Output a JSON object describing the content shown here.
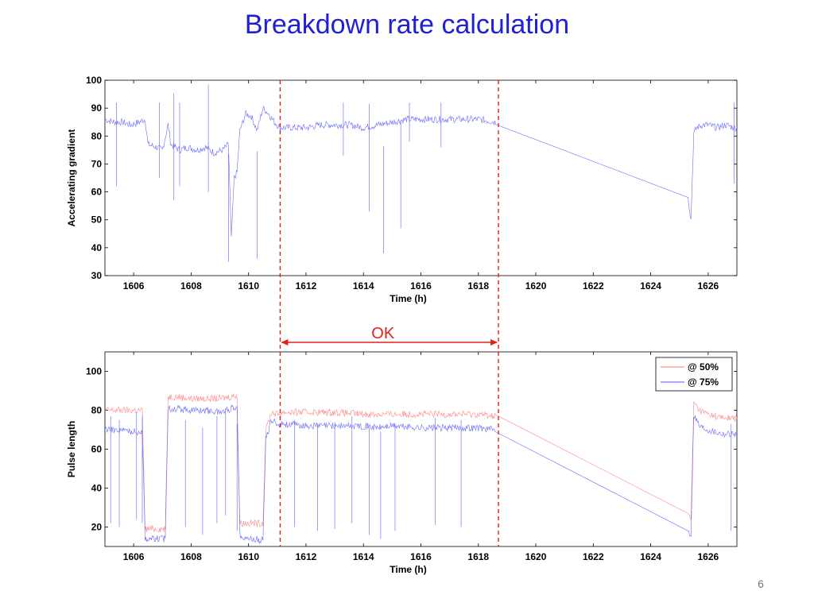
{
  "slide": {
    "title": "Breakdown rate calculation",
    "page_number": "6",
    "ok_label": "OK",
    "colors": {
      "title": "#1f1fd6",
      "marker": "#e0201b",
      "series_blue": "#5a5aff",
      "series_red": "#ff7a7a"
    }
  },
  "chart_data": [
    {
      "type": "line",
      "title": "",
      "xlabel": "Time (h)",
      "ylabel": "Accelerating gradient",
      "xlim": [
        1605,
        1627
      ],
      "ylim": [
        30,
        100
      ],
      "xticks": [
        1606,
        1608,
        1610,
        1612,
        1614,
        1616,
        1618,
        1620,
        1622,
        1624,
        1626
      ],
      "yticks": [
        30,
        40,
        50,
        60,
        70,
        80,
        90,
        100
      ],
      "series": [
        {
          "name": "",
          "color": "#5a5aff",
          "x": [
            1605.0,
            1605.3,
            1605.6,
            1605.9,
            1606.2,
            1606.4,
            1606.5,
            1606.8,
            1607.0,
            1607.2,
            1607.3,
            1607.6,
            1607.9,
            1608.2,
            1608.5,
            1608.8,
            1609.1,
            1609.3,
            1609.4,
            1609.5,
            1609.6,
            1609.7,
            1609.8,
            1609.9,
            1610.1,
            1610.3,
            1610.5,
            1610.7,
            1610.9,
            1611.1,
            1611.5,
            1612.0,
            1612.5,
            1613.0,
            1613.5,
            1614.0,
            1614.5,
            1615.0,
            1615.5,
            1616.0,
            1616.5,
            1617.0,
            1617.5,
            1618.0,
            1618.6,
            1625.3,
            1625.4,
            1625.5,
            1625.6,
            1625.8,
            1626.0,
            1626.3,
            1626.6,
            1626.9,
            1627.0
          ],
          "y": [
            86,
            85,
            85,
            84,
            85,
            86,
            77,
            76,
            75,
            84,
            77,
            75,
            76,
            75,
            76,
            74,
            75,
            77,
            43,
            65,
            67,
            82,
            85,
            88,
            87,
            82,
            90,
            88,
            85,
            83,
            83,
            83,
            84,
            84,
            84,
            83,
            84,
            85,
            86,
            86,
            86,
            86,
            86,
            86,
            85,
            58,
            50,
            81,
            83,
            84,
            84,
            83,
            84,
            83,
            83
          ]
        }
      ],
      "dips": [
        {
          "x": 1605.4,
          "y": 62
        },
        {
          "x": 1606.9,
          "y": 65
        },
        {
          "x": 1607.4,
          "y": 57
        },
        {
          "x": 1607.6,
          "y": 62
        },
        {
          "x": 1608.6,
          "y": 60
        },
        {
          "x": 1609.3,
          "y": 35
        },
        {
          "x": 1610.3,
          "y": 36
        },
        {
          "x": 1613.3,
          "y": 73
        },
        {
          "x": 1614.2,
          "y": 53
        },
        {
          "x": 1614.7,
          "y": 38
        },
        {
          "x": 1615.3,
          "y": 47
        },
        {
          "x": 1615.6,
          "y": 78
        },
        {
          "x": 1616.7,
          "y": 76
        },
        {
          "x": 1626.9,
          "y": 63
        }
      ]
    },
    {
      "type": "line",
      "title": "",
      "xlabel": "Time (h)",
      "ylabel": "Pulse length",
      "xlim": [
        1605,
        1627
      ],
      "ylim": [
        10,
        110
      ],
      "xticks": [
        1606,
        1608,
        1610,
        1612,
        1614,
        1616,
        1618,
        1620,
        1622,
        1624,
        1626
      ],
      "yticks": [
        20,
        40,
        60,
        80,
        100
      ],
      "legend": {
        "position": "top-right",
        "entries": [
          "@ 50%",
          "@ 75%"
        ]
      },
      "series": [
        {
          "name": "@ 50%",
          "color": "#ff7a7a",
          "x": [
            1605.0,
            1605.5,
            1606.0,
            1606.3,
            1606.4,
            1607.0,
            1607.1,
            1607.2,
            1607.5,
            1608.0,
            1608.5,
            1609.0,
            1609.4,
            1609.6,
            1609.7,
            1610.0,
            1610.5,
            1610.6,
            1610.8,
            1611.0,
            1611.2,
            1612.0,
            1613.0,
            1614.0,
            1614.5,
            1615.0,
            1616.0,
            1617.0,
            1618.0,
            1618.6,
            1625.3,
            1625.4,
            1625.5,
            1625.7,
            1626.0,
            1626.5,
            1627.0
          ],
          "y": [
            80,
            80,
            80,
            80,
            19,
            19,
            19,
            87,
            87,
            86,
            86,
            86,
            87,
            88,
            22,
            22,
            22,
            70,
            79,
            78,
            79,
            79,
            79,
            78,
            78,
            78,
            78,
            78,
            78,
            77,
            27,
            24,
            84,
            80,
            78,
            76,
            76
          ]
        },
        {
          "name": "@ 75%",
          "color": "#5a5aff",
          "x": [
            1605.0,
            1605.5,
            1606.0,
            1606.3,
            1606.4,
            1607.0,
            1607.1,
            1607.2,
            1607.5,
            1608.0,
            1608.5,
            1609.0,
            1609.4,
            1609.6,
            1609.7,
            1610.0,
            1610.5,
            1610.6,
            1610.8,
            1611.0,
            1611.2,
            1612.0,
            1613.0,
            1614.0,
            1614.5,
            1615.0,
            1616.0,
            1617.0,
            1618.0,
            1618.6,
            1625.3,
            1625.4,
            1625.5,
            1625.7,
            1626.0,
            1626.5,
            1627.0
          ],
          "y": [
            70,
            70,
            69,
            69,
            14,
            14,
            14,
            81,
            81,
            80,
            80,
            79,
            81,
            82,
            16,
            14,
            13,
            65,
            75,
            73,
            73,
            72,
            72,
            72,
            71,
            72,
            71,
            71,
            71,
            70,
            18,
            16,
            78,
            72,
            70,
            68,
            68
          ]
        }
      ],
      "dips": [
        {
          "x": 1605.2,
          "y": 22
        },
        {
          "x": 1605.5,
          "y": 20
        },
        {
          "x": 1606.1,
          "y": 24
        },
        {
          "x": 1606.3,
          "y": 22
        },
        {
          "x": 1607.8,
          "y": 20
        },
        {
          "x": 1608.4,
          "y": 16
        },
        {
          "x": 1608.9,
          "y": 22
        },
        {
          "x": 1609.2,
          "y": 26
        },
        {
          "x": 1609.6,
          "y": 18
        },
        {
          "x": 1611.6,
          "y": 20
        },
        {
          "x": 1612.4,
          "y": 18
        },
        {
          "x": 1613.0,
          "y": 19
        },
        {
          "x": 1613.6,
          "y": 22
        },
        {
          "x": 1614.2,
          "y": 16
        },
        {
          "x": 1614.6,
          "y": 14
        },
        {
          "x": 1615.1,
          "y": 18
        },
        {
          "x": 1616.5,
          "y": 21
        },
        {
          "x": 1617.4,
          "y": 20
        },
        {
          "x": 1626.8,
          "y": 18
        }
      ]
    }
  ],
  "markers": {
    "start_time": 1611.1,
    "end_time": 1618.7,
    "label": "OK"
  }
}
